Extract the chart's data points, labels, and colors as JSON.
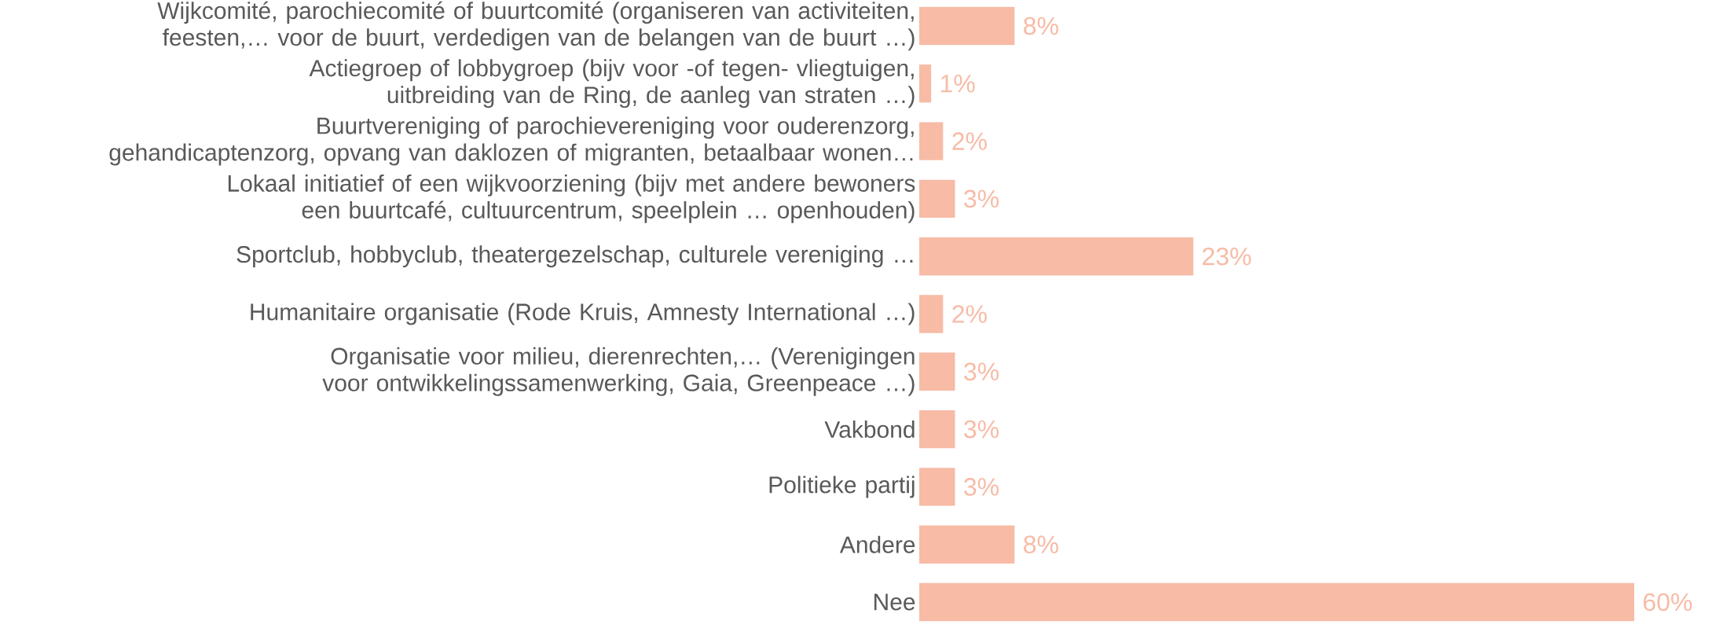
{
  "chart_data": {
    "type": "bar",
    "orientation": "horizontal",
    "color": "#f7bba6",
    "categories": [
      "Wijkcomité, parochiecomité of buurtcomité (organiseren van activiteiten, feesten,… voor de buurt, verdedigen van de belangen van de buurt …)",
      "Actiegroep of lobbygroep (bijv  voor -of tegen- vliegtuigen, uitbreiding van de Ring, de aanleg van straten …)",
      "Buurtvereniging of parochievereniging voor ouderenzorg, gehandicaptenzorg, opvang van daklozen of migranten, betaalbaar wonen…",
      "Lokaal initiatief of een wijkvoorziening (bijv  met andere bewoners een buurtcafé, cultuurcentrum, speelplein … openhouden)",
      "Sportclub, hobbyclub, theatergezelschap, culturele vereniging …",
      "Humanitaire organisatie (Rode Kruis, Amnesty International …)",
      "Organisatie voor milieu, dierenrechten,… (Verenigingen voor ontwikkelingssamenwerking, Gaia, Greenpeace …)",
      "Vakbond",
      "Politieke partij",
      "Andere",
      "Nee"
    ],
    "values": [
      8,
      1,
      2,
      3,
      23,
      2,
      3,
      3,
      3,
      8,
      60
    ],
    "value_labels": [
      "8%",
      "1%",
      "2%",
      "3%",
      "23%",
      "2%",
      "3%",
      "3%",
      "3%",
      "8%",
      "60%"
    ]
  }
}
